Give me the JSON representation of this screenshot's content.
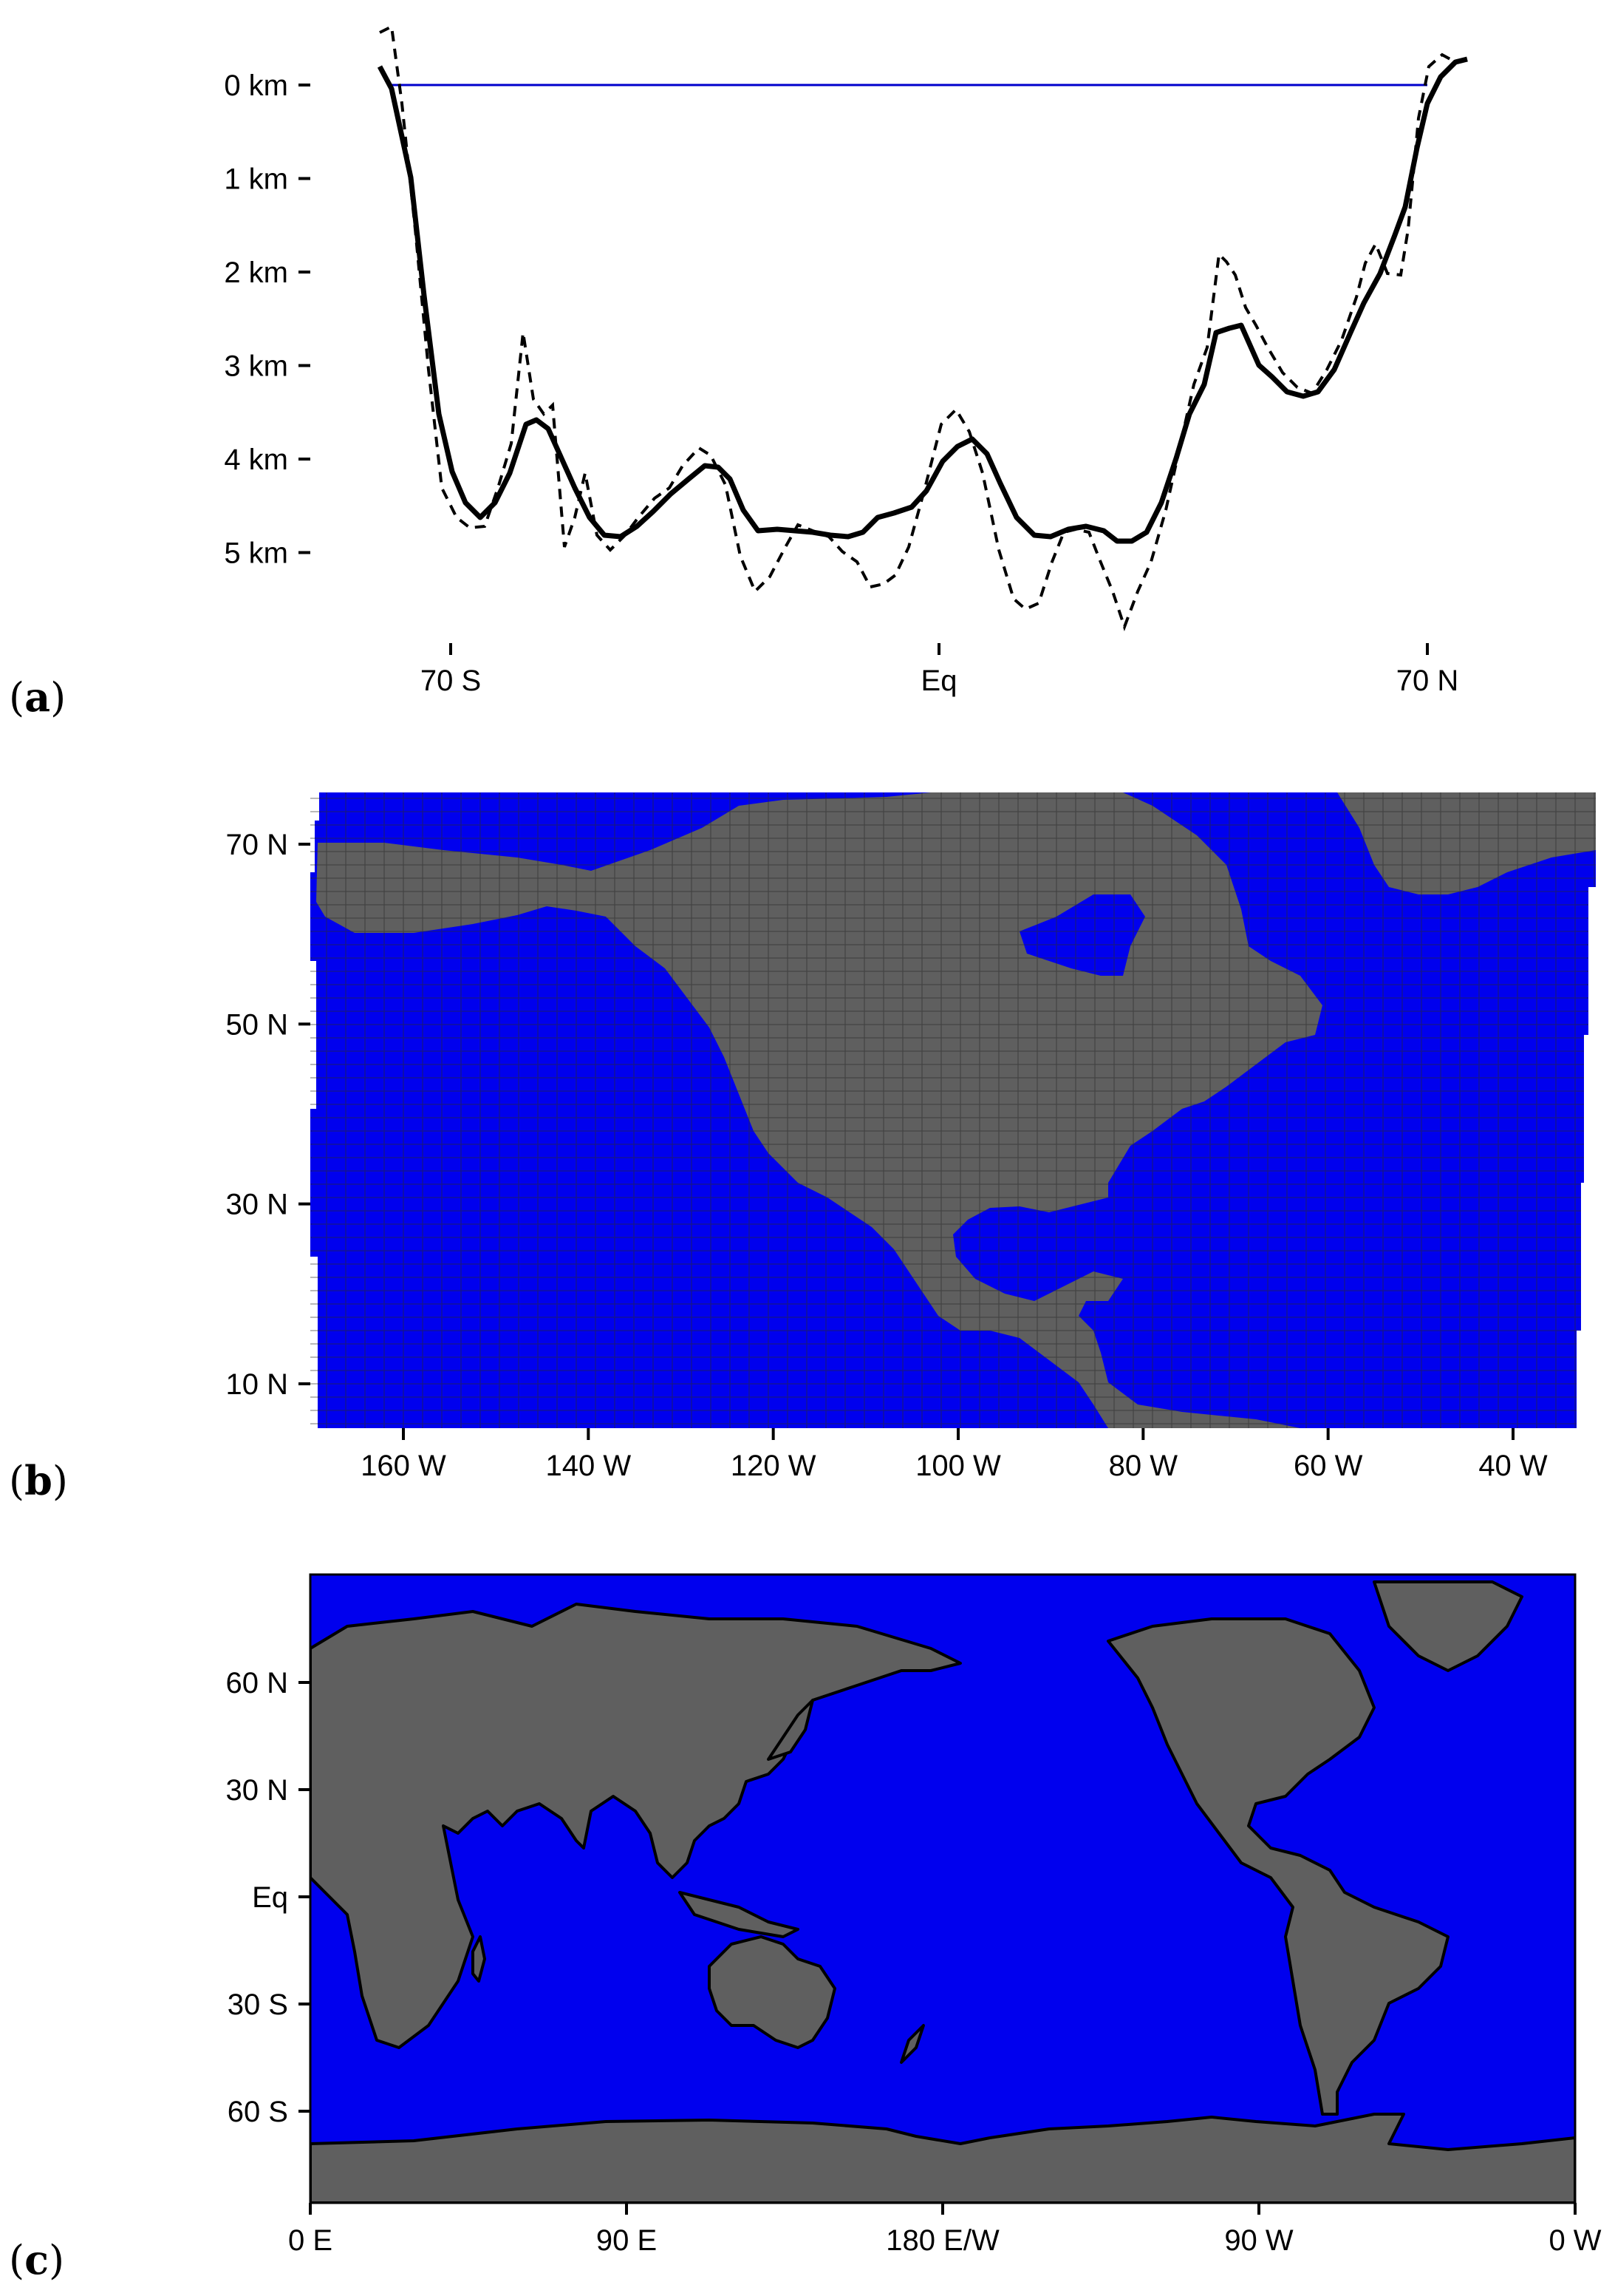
{
  "panels": {
    "a": {
      "label_open": "(",
      "label_letter": "a",
      "label_close": ")",
      "y_ticks": [
        {
          "label": "0 km",
          "depth": 0
        },
        {
          "label": "1 km",
          "depth": 1
        },
        {
          "label": "2 km",
          "depth": 2
        },
        {
          "label": "3 km",
          "depth": 3
        },
        {
          "label": "4 km",
          "depth": 4
        },
        {
          "label": "5 km",
          "depth": 5
        }
      ],
      "x_ticks": [
        {
          "label": "70 S",
          "lat": -70
        },
        {
          "label": "Eq",
          "lat": 0
        },
        {
          "label": "70 N",
          "lat": 70
        }
      ]
    },
    "b": {
      "label_open": "(",
      "label_letter": "b",
      "label_close": ")",
      "y_ticks": [
        {
          "label": "70 N",
          "lat": 70
        },
        {
          "label": "50 N",
          "lat": 50
        },
        {
          "label": "30 N",
          "lat": 30
        },
        {
          "label": "10 N",
          "lat": 10
        }
      ],
      "x_ticks": [
        {
          "label": "160 W",
          "lon": -160
        },
        {
          "label": "140 W",
          "lon": -140
        },
        {
          "label": "120 W",
          "lon": -120
        },
        {
          "label": "100 W",
          "lon": -100
        },
        {
          "label": "80 W",
          "lon": -80
        },
        {
          "label": "60 W",
          "lon": -60
        },
        {
          "label": "40 W",
          "lon": -40
        }
      ]
    },
    "c": {
      "label_open": "(",
      "label_letter": "c",
      "label_close": ")",
      "y_ticks": [
        {
          "label": "60 N",
          "lat": 60
        },
        {
          "label": "30 N",
          "lat": 30
        },
        {
          "label": "Eq",
          "lat": 0
        },
        {
          "label": "30 S",
          "lat": -30
        },
        {
          "label": "60 S",
          "lat": -60
        }
      ],
      "x_ticks": [
        {
          "label": "0 E",
          "lon": 0
        },
        {
          "label": "90 E",
          "lon": 90
        },
        {
          "label": "180 E/W",
          "lon": 180
        },
        {
          "label": "90 W",
          "lon": 270
        },
        {
          "label": "0 W",
          "lon": 360
        }
      ]
    }
  },
  "colors": {
    "ocean": "#0000ee",
    "land": "#5f5f5f",
    "coastline": "#000000",
    "sea_level_line": "#0000cc",
    "profile": "#000000"
  }
}
